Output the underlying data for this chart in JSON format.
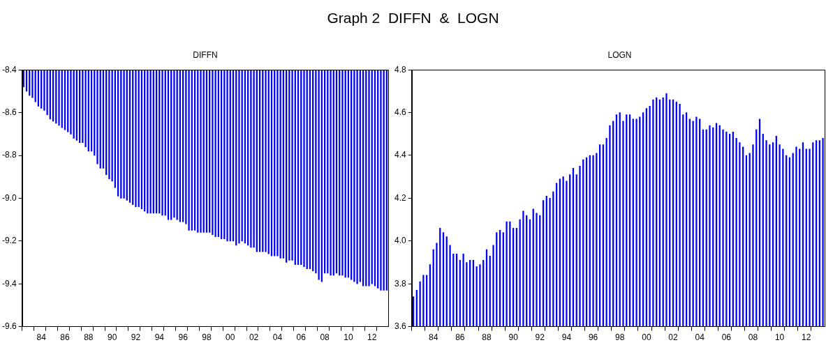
{
  "chart_data": [
    {
      "type": "bar",
      "title": "DIFFN",
      "annotations": [
        "Graph 2  DIFFN  &  LOGN"
      ],
      "categories": [
        null,
        null,
        null,
        null,
        null,
        null,
        "84",
        null,
        null,
        null,
        null,
        null,
        null,
        null,
        "86",
        null,
        null,
        null,
        null,
        null,
        null,
        null,
        "88",
        null,
        null,
        null,
        null,
        null,
        null,
        null,
        "90",
        null,
        null,
        null,
        null,
        null,
        null,
        null,
        "92",
        null,
        null,
        null,
        null,
        null,
        null,
        null,
        "94",
        null,
        null,
        null,
        null,
        null,
        null,
        null,
        "96",
        null,
        null,
        null,
        null,
        null,
        null,
        null,
        "98",
        null,
        null,
        null,
        null,
        null,
        null,
        null,
        "00",
        null,
        null,
        null,
        null,
        null,
        null,
        null,
        "02",
        null,
        null,
        null,
        null,
        null,
        null,
        null,
        "04",
        null,
        null,
        null,
        null,
        null,
        null,
        null,
        "06",
        null,
        null,
        null,
        null,
        null,
        null,
        null,
        "08",
        null,
        null,
        null,
        null,
        null,
        null,
        null,
        "10",
        null,
        null,
        null,
        null,
        null,
        null,
        null,
        "12",
        null,
        null,
        null,
        null,
        null
      ],
      "color": "#0000ff",
      "values": [
        -8.48,
        -8.5,
        -8.52,
        -8.53,
        -8.55,
        -8.57,
        -8.58,
        -8.59,
        -8.61,
        -8.63,
        -8.64,
        -8.65,
        -8.66,
        -8.67,
        -8.68,
        -8.69,
        -8.7,
        -8.72,
        -8.73,
        -8.74,
        -8.74,
        -8.76,
        -8.78,
        -8.78,
        -8.8,
        -8.84,
        -8.86,
        -8.86,
        -8.89,
        -8.91,
        -8.92,
        -8.95,
        -8.99,
        -9.0,
        -9.0,
        -9.01,
        -9.02,
        -9.03,
        -9.04,
        -9.04,
        -9.05,
        -9.06,
        -9.07,
        -9.07,
        -9.07,
        -9.07,
        -9.07,
        -9.08,
        -9.08,
        -9.1,
        -9.1,
        -9.09,
        -9.1,
        -9.11,
        -9.11,
        -9.12,
        -9.15,
        -9.15,
        -9.15,
        -9.16,
        -9.16,
        -9.16,
        -9.16,
        -9.16,
        -9.17,
        -9.18,
        -9.18,
        -9.19,
        -9.19,
        -9.2,
        -9.2,
        -9.2,
        -9.22,
        -9.21,
        -9.2,
        -9.21,
        -9.22,
        -9.23,
        -9.23,
        -9.25,
        -9.25,
        -9.25,
        -9.25,
        -9.26,
        -9.27,
        -9.27,
        -9.27,
        -9.28,
        -9.28,
        -9.3,
        -9.29,
        -9.29,
        -9.31,
        -9.31,
        -9.31,
        -9.32,
        -9.33,
        -9.33,
        -9.34,
        -9.35,
        -9.38,
        -9.39,
        -9.35,
        -9.35,
        -9.36,
        -9.36,
        -9.35,
        -9.36,
        -9.36,
        -9.37,
        -9.37,
        -9.38,
        -9.39,
        -9.4,
        -9.39,
        -9.41,
        -9.41,
        -9.41,
        -9.4,
        -9.41,
        -9.42,
        -9.43,
        -9.43,
        -9.43
      ],
      "ylim": [
        -9.6,
        -8.4
      ],
      "yticks": [
        -9.6,
        -9.4,
        -9.2,
        {
          "value": -9,
          "label": "-9.0"
        },
        -8.8,
        -8.6,
        -8.4
      ],
      "grid": false,
      "legend": false
    },
    {
      "type": "bar",
      "title": "LOGN",
      "categories": [
        null,
        null,
        null,
        null,
        null,
        null,
        "84",
        null,
        null,
        null,
        null,
        null,
        null,
        null,
        "86",
        null,
        null,
        null,
        null,
        null,
        null,
        null,
        "88",
        null,
        null,
        null,
        null,
        null,
        null,
        null,
        "90",
        null,
        null,
        null,
        null,
        null,
        null,
        null,
        "92",
        null,
        null,
        null,
        null,
        null,
        null,
        null,
        "94",
        null,
        null,
        null,
        null,
        null,
        null,
        null,
        "96",
        null,
        null,
        null,
        null,
        null,
        null,
        null,
        "98",
        null,
        null,
        null,
        null,
        null,
        null,
        null,
        "00",
        null,
        null,
        null,
        null,
        null,
        null,
        null,
        "02",
        null,
        null,
        null,
        null,
        null,
        null,
        null,
        "04",
        null,
        null,
        null,
        null,
        null,
        null,
        null,
        "06",
        null,
        null,
        null,
        null,
        null,
        null,
        null,
        "08",
        null,
        null,
        null,
        null,
        null,
        null,
        null,
        "10",
        null,
        null,
        null,
        null,
        null,
        null,
        null,
        "12",
        null,
        null,
        null,
        null,
        null
      ],
      "color": "#0000ff",
      "values": [
        3.74,
        3.77,
        3.81,
        3.84,
        3.84,
        3.89,
        3.96,
        3.99,
        4.06,
        4.04,
        4.02,
        3.98,
        3.94,
        3.94,
        3.91,
        3.94,
        3.9,
        3.91,
        3.91,
        3.88,
        3.89,
        3.91,
        3.96,
        3.93,
        3.98,
        4.04,
        4.05,
        4.04,
        4.09,
        4.09,
        4.06,
        4.06,
        4.1,
        4.14,
        4.12,
        4.1,
        4.15,
        4.13,
        4.12,
        4.19,
        4.21,
        4.2,
        4.23,
        4.27,
        4.29,
        4.3,
        4.28,
        4.31,
        4.34,
        4.31,
        4.35,
        4.38,
        4.39,
        4.4,
        4.4,
        4.41,
        4.45,
        4.45,
        4.48,
        4.54,
        4.56,
        4.59,
        4.6,
        4.56,
        4.59,
        4.59,
        4.57,
        4.57,
        4.58,
        4.6,
        4.62,
        4.63,
        4.66,
        4.67,
        4.66,
        4.67,
        4.69,
        4.66,
        4.66,
        4.65,
        4.64,
        4.59,
        4.6,
        4.57,
        4.56,
        4.58,
        4.57,
        4.52,
        4.52,
        4.54,
        4.53,
        4.55,
        4.54,
        4.52,
        4.51,
        4.5,
        4.51,
        4.48,
        4.46,
        4.44,
        4.4,
        4.41,
        4.45,
        4.52,
        4.57,
        4.5,
        4.47,
        4.45,
        4.46,
        4.49,
        4.45,
        4.43,
        4.4,
        4.39,
        4.41,
        4.44,
        4.43,
        4.46,
        4.43,
        4.43,
        4.46,
        4.47,
        4.47,
        4.48
      ],
      "ylim": [
        3.6,
        4.8
      ],
      "yticks": [
        3.6,
        3.8,
        {
          "value": 4,
          "label": "4.0"
        },
        4.2,
        4.4,
        4.6,
        4.8
      ],
      "grid": false,
      "legend": false
    }
  ]
}
